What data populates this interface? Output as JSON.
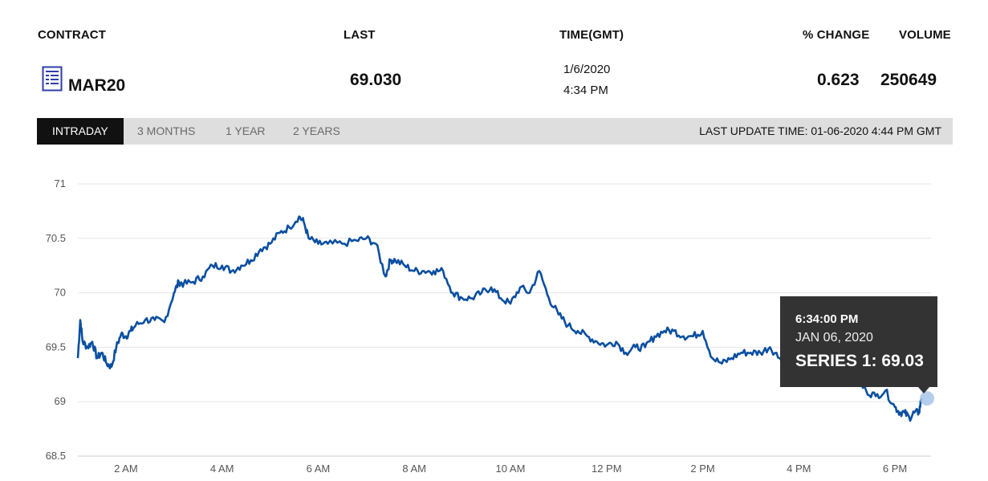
{
  "header": {
    "contract_label": "CONTRACT",
    "last_label": "LAST",
    "time_label": "TIME(GMT)",
    "change_label": "% CHANGE",
    "volume_label": "VOLUME"
  },
  "quote": {
    "contract": "MAR20",
    "last": "69.030",
    "date": "1/6/2020",
    "time": "4:34 PM",
    "change": "0.623",
    "volume": "250649"
  },
  "tabs": [
    "INTRADAY",
    "3 MONTHS",
    "1 YEAR",
    "2 YEARS"
  ],
  "last_update": "LAST UPDATE TIME: 01-06-2020 4:44 PM GMT",
  "tooltip": {
    "time": "6:34:00 PM",
    "date": "JAN 06, 2020",
    "value": "SERIES 1: 69.03"
  },
  "colors": {
    "line": "#0b4fa0",
    "tab_active": "#111111",
    "tooltip_bg": "#333333",
    "marker": "#a9c6ea"
  },
  "icons": {
    "contract": "document-icon"
  },
  "chart_data": {
    "type": "line",
    "title": "",
    "xlabel": "",
    "ylabel": "",
    "ylim": [
      68.5,
      71
    ],
    "y_ticks": [
      "68.5",
      "69",
      "69.5",
      "70",
      "70.5",
      "71"
    ],
    "x_ticks": [
      "2 AM",
      "4 AM",
      "6 AM",
      "8 AM",
      "10 AM",
      "12 PM",
      "2 PM",
      "4 PM",
      "6 PM"
    ],
    "x_tick_hours": [
      2,
      4,
      6,
      8,
      10,
      12,
      14,
      16,
      18
    ],
    "xlim_hours": [
      1.0,
      18.75
    ],
    "grid": true,
    "series": [
      {
        "x_hours": [
          1.0,
          1.05,
          1.1,
          1.2,
          1.3,
          1.4,
          1.5,
          1.6,
          1.7,
          1.8,
          1.9,
          2.0,
          2.1,
          2.2,
          2.4,
          2.6,
          2.8,
          3.0,
          3.1,
          3.2,
          3.4,
          3.6,
          3.8,
          4.0,
          4.2,
          4.4,
          4.6,
          4.8,
          5.0,
          5.2,
          5.4,
          5.6,
          5.7,
          5.8,
          6.0,
          6.2,
          6.5,
          6.8,
          7.0,
          7.2,
          7.4,
          7.5,
          7.6,
          7.8,
          8.0,
          8.2,
          8.4,
          8.6,
          8.8,
          9.0,
          9.2,
          9.4,
          9.6,
          9.8,
          10.0,
          10.2,
          10.4,
          10.6,
          10.8,
          11.0,
          11.2,
          11.4,
          11.6,
          11.8,
          12.0,
          12.2,
          12.4,
          12.6,
          12.8,
          13.0,
          13.2,
          13.4,
          13.6,
          13.8,
          14.0,
          14.2,
          14.4,
          14.6,
          14.8,
          15.0,
          15.2,
          15.4,
          15.6,
          15.8,
          16.0,
          16.2,
          16.4,
          16.6,
          16.8,
          17.0,
          17.2,
          17.4,
          17.6,
          17.8,
          18.0,
          18.1,
          18.2,
          18.3,
          18.4,
          18.5,
          18.55
        ],
        "y": [
          69.4,
          69.75,
          69.55,
          69.5,
          69.55,
          69.4,
          69.45,
          69.35,
          69.32,
          69.5,
          69.62,
          69.6,
          69.65,
          69.7,
          69.75,
          69.75,
          69.73,
          70.0,
          70.1,
          70.08,
          70.1,
          70.15,
          70.25,
          70.25,
          70.2,
          70.25,
          70.3,
          70.4,
          70.45,
          70.55,
          70.6,
          70.7,
          70.65,
          70.5,
          70.45,
          70.45,
          70.45,
          70.48,
          70.5,
          70.45,
          70.15,
          70.3,
          70.3,
          70.25,
          70.2,
          70.2,
          70.2,
          70.2,
          70.0,
          69.95,
          69.95,
          70.0,
          70.05,
          69.95,
          69.9,
          70.05,
          70.0,
          70.2,
          69.95,
          69.8,
          69.7,
          69.65,
          69.6,
          69.55,
          69.52,
          69.55,
          69.45,
          69.5,
          69.5,
          69.6,
          69.65,
          69.65,
          69.6,
          69.6,
          69.65,
          69.4,
          69.35,
          69.4,
          69.45,
          69.45,
          69.45,
          69.5,
          69.4,
          69.48,
          69.4,
          69.45,
          69.35,
          69.3,
          69.15,
          69.25,
          69.2,
          69.1,
          69.05,
          69.1,
          68.95,
          68.9,
          68.9,
          68.85,
          68.9,
          68.9,
          69.03
        ],
        "end_marker_value": 69.03
      }
    ]
  }
}
